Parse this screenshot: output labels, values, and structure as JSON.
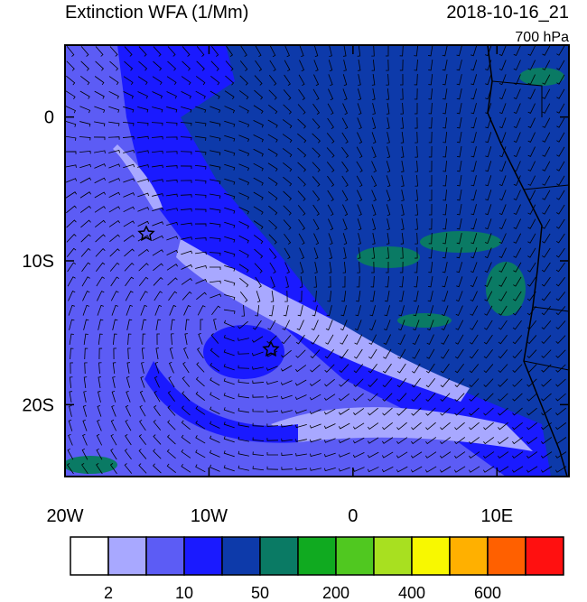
{
  "title": "Extinction WFA (1/Mm)",
  "date": "2018-10-16_21",
  "level": "700 hPa",
  "map": {
    "xlim": [
      -20,
      15
    ],
    "ylim": [
      -25,
      5
    ],
    "xticks": [
      {
        "value": -20,
        "label": "20W"
      },
      {
        "value": -10,
        "label": "10W"
      },
      0,
      {
        "value": 10,
        "label": "10E"
      }
    ],
    "yticks": [
      0,
      {
        "value": -10,
        "label": "10S"
      },
      {
        "value": -20,
        "label": "20S"
      }
    ]
  },
  "colorbar": {
    "colors": [
      "#ffffff",
      "#a8a8ff",
      "#5c5cf5",
      "#1a1aff",
      "#0d3aaa",
      "#0a7a64",
      "#10aa20",
      "#50c820",
      "#a8e020",
      "#f8f800",
      "#ffb000",
      "#ff6000",
      "#ff1010"
    ],
    "labels": [
      2,
      10,
      50,
      200,
      400,
      600
    ]
  }
}
